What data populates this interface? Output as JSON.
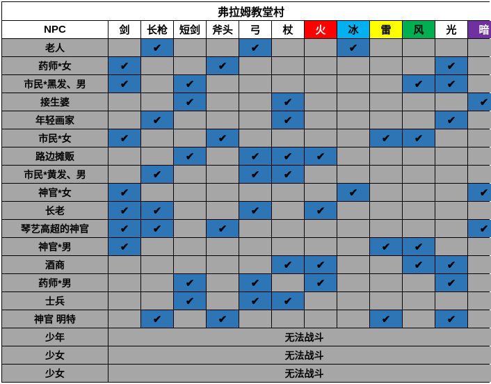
{
  "title": "弗拉姆教堂村",
  "npc_header": "NPC",
  "columns": [
    {
      "label": "剑",
      "bg": "#ffffff",
      "color": "#000000"
    },
    {
      "label": "长枪",
      "bg": "#ffffff",
      "color": "#000000"
    },
    {
      "label": "短剑",
      "bg": "#ffffff",
      "color": "#000000"
    },
    {
      "label": "斧头",
      "bg": "#ffffff",
      "color": "#000000"
    },
    {
      "label": "弓",
      "bg": "#ffffff",
      "color": "#000000"
    },
    {
      "label": "杖",
      "bg": "#ffffff",
      "color": "#000000"
    },
    {
      "label": "火",
      "bg": "#ff0000",
      "color": "#ffffff"
    },
    {
      "label": "冰",
      "bg": "#00b0f0",
      "color": "#000000"
    },
    {
      "label": "雷",
      "bg": "#ffff00",
      "color": "#000000"
    },
    {
      "label": "风",
      "bg": "#00b050",
      "color": "#000000"
    },
    {
      "label": "光",
      "bg": "#ffffff",
      "color": "#000000"
    },
    {
      "label": "暗",
      "bg": "#7030a0",
      "color": "#ffffff"
    }
  ],
  "checked_bg": "#2e75b6",
  "default_bg": "#a6a6a6",
  "check_symbol": "✔",
  "cannot_fight": "无法战斗",
  "rows": [
    {
      "npc": "老人",
      "checks": [
        0,
        1,
        0,
        0,
        1,
        0,
        0,
        1,
        0,
        0,
        0,
        0
      ]
    },
    {
      "npc": "药师*女",
      "checks": [
        1,
        0,
        0,
        1,
        0,
        0,
        0,
        0,
        0,
        0,
        1,
        0
      ]
    },
    {
      "npc": "市民*黑发、男",
      "checks": [
        1,
        0,
        1,
        0,
        0,
        0,
        0,
        0,
        0,
        1,
        1,
        0
      ]
    },
    {
      "npc": "接生婆",
      "checks": [
        0,
        0,
        1,
        0,
        0,
        1,
        0,
        0,
        0,
        0,
        0,
        1
      ]
    },
    {
      "npc": "年轻画家",
      "checks": [
        0,
        1,
        0,
        0,
        0,
        1,
        0,
        0,
        0,
        0,
        1,
        0
      ]
    },
    {
      "npc": "市民*女",
      "checks": [
        1,
        0,
        0,
        1,
        0,
        0,
        0,
        0,
        1,
        1,
        0,
        0
      ]
    },
    {
      "npc": "路边摊贩",
      "checks": [
        0,
        0,
        1,
        0,
        1,
        1,
        1,
        0,
        0,
        0,
        0,
        0
      ]
    },
    {
      "npc": "市民*黄发、男",
      "checks": [
        0,
        1,
        0,
        0,
        1,
        1,
        0,
        0,
        0,
        0,
        0,
        0
      ]
    },
    {
      "npc": "神官*女",
      "checks": [
        1,
        0,
        0,
        0,
        0,
        0,
        0,
        1,
        0,
        0,
        0,
        1
      ]
    },
    {
      "npc": "长老",
      "checks": [
        1,
        1,
        0,
        0,
        1,
        0,
        1,
        0,
        0,
        0,
        0,
        0
      ]
    },
    {
      "npc": "琴艺高超的神官",
      "checks": [
        1,
        1,
        0,
        1,
        0,
        0,
        0,
        0,
        0,
        0,
        0,
        1
      ]
    },
    {
      "npc": "神官*男",
      "checks": [
        1,
        0,
        0,
        0,
        0,
        0,
        0,
        0,
        1,
        1,
        0,
        0
      ]
    },
    {
      "npc": "酒商",
      "checks": [
        0,
        0,
        0,
        0,
        0,
        1,
        1,
        0,
        0,
        1,
        1,
        0
      ]
    },
    {
      "npc": "药师*男",
      "checks": [
        0,
        0,
        1,
        0,
        1,
        0,
        1,
        0,
        0,
        0,
        1,
        0
      ]
    },
    {
      "npc": "士兵",
      "checks": [
        0,
        0,
        1,
        0,
        1,
        1,
        0,
        0,
        0,
        0,
        0,
        0
      ]
    },
    {
      "npc": "神官 明特",
      "checks": [
        0,
        1,
        0,
        1,
        0,
        0,
        0,
        0,
        1,
        0,
        1,
        0
      ]
    },
    {
      "npc": "少年",
      "cannot": true
    },
    {
      "npc": "少女",
      "cannot": true
    },
    {
      "npc": "少女",
      "cannot": true
    }
  ]
}
